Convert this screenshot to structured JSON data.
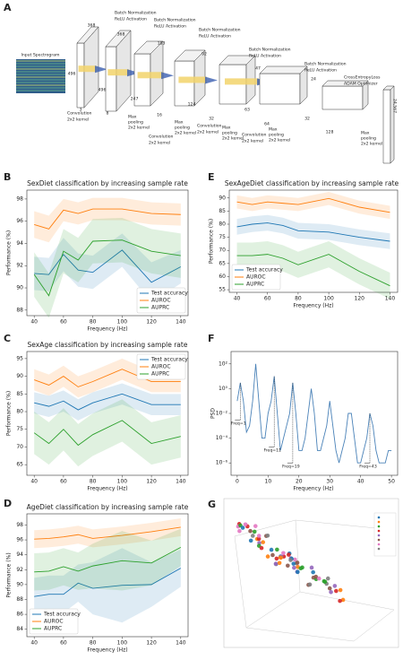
{
  "diagram": {
    "panel": "A",
    "texts": [
      "Input Spectrogram",
      "Batch Normalization",
      "ReLU Activation",
      "Batch Normalization",
      "ReLU Activation",
      "Batch Normalization",
      "ReLU Activation",
      "Batch Normalization",
      "ReLU Activation",
      "Batch Normalization",
      "ReLU Activation",
      "CrossEntropyLoss",
      "ADAM Optimizer",
      "Convolution",
      "2x2 kernel",
      "Max",
      "pooling",
      "2x2 kernel",
      "Convolution",
      "2x2 kernel",
      "Max",
      "pooling",
      "2x2 kernel",
      "Convolution",
      "2x2 kernel",
      "Max",
      "pooling",
      "2x2 kernel",
      "Convolution",
      "2x2 kernel",
      "Max",
      "pooling",
      "2x2 kernel",
      "Max",
      "pooling",
      "2x2 kernel"
    ],
    "dims": [
      "368",
      "496",
      "3",
      "368",
      "496",
      "8",
      "183",
      "247",
      "16",
      "92",
      "124",
      "32",
      "47",
      "63",
      "64",
      "24",
      "32",
      "128",
      "24,567"
    ]
  },
  "chart_data": [
    {
      "type": "line",
      "panel": "B",
      "title": "SexDiet classification by increasing sample rate",
      "x_label": "Frequency (Hz)",
      "y_label": "Performance (%)",
      "x": [
        40,
        50,
        60,
        70,
        80,
        100,
        120,
        140
      ],
      "xlim": [
        35,
        145
      ],
      "xticks": [
        40,
        60,
        80,
        100,
        120,
        140
      ],
      "ylim": [
        87.5,
        98.8
      ],
      "yticks": [
        88,
        90,
        92,
        94,
        96,
        98
      ],
      "legend": "lower right",
      "series": [
        {
          "name": "Test accuracy",
          "color": "#1f77b4",
          "values": [
            91.3,
            91.2,
            93,
            91.6,
            91.4,
            93.4,
            90.5,
            91.9
          ],
          "errors": [
            1.5,
            1.5,
            1.5,
            1.5,
            1.5,
            1.5,
            1.8,
            1.5
          ]
        },
        {
          "name": "AUROC",
          "color": "#ff7f0e",
          "values": [
            95.7,
            95.3,
            97,
            96.7,
            97.1,
            97.1,
            96.7,
            96.6
          ],
          "errors": [
            1.2,
            1.2,
            1,
            1,
            1,
            1,
            1,
            1
          ]
        },
        {
          "name": "AUPRC",
          "color": "#2ca02c",
          "values": [
            91.2,
            89.3,
            93.3,
            92.5,
            94.2,
            94.3,
            93.3,
            92.9
          ],
          "errors": [
            2,
            2,
            2,
            2,
            2,
            2,
            2,
            2
          ]
        }
      ]
    },
    {
      "type": "line",
      "panel": "C",
      "title": "SexAge classification by increasing sample rate",
      "x_label": "Frequency (Hz)",
      "y_label": "Performance (%)",
      "x": [
        40,
        50,
        60,
        70,
        80,
        100,
        120,
        140
      ],
      "xlim": [
        35,
        145
      ],
      "xticks": [
        40,
        60,
        80,
        100,
        120,
        140
      ],
      "ylim": [
        62,
        97
      ],
      "yticks": [
        65,
        70,
        75,
        80,
        85,
        90,
        95
      ],
      "legend": "upper right",
      "series": [
        {
          "name": "Test accuracy",
          "color": "#1f77b4",
          "values": [
            82.5,
            81.5,
            83,
            80.5,
            82.5,
            85,
            82,
            82
          ],
          "errors": [
            3,
            3,
            3,
            3,
            3,
            3,
            3,
            3
          ]
        },
        {
          "name": "AUROC",
          "color": "#ff7f0e",
          "values": [
            89,
            87.5,
            90,
            87,
            88.5,
            92,
            88.5,
            88.5
          ],
          "errors": [
            3,
            3,
            3,
            3,
            3,
            3,
            3,
            3
          ]
        },
        {
          "name": "AUPRC",
          "color": "#2ca02c",
          "values": [
            74,
            71,
            75,
            70.5,
            73.5,
            77.5,
            71,
            73
          ],
          "errors": [
            6,
            6,
            6,
            6,
            6,
            6,
            6,
            6
          ]
        }
      ]
    },
    {
      "type": "line",
      "panel": "D",
      "title": "AgeDiet classification by increasing sample rate",
      "x_label": "Frequency (Hz)",
      "y_label": "Performance (%)",
      "x": [
        40,
        50,
        60,
        70,
        80,
        100,
        120,
        140
      ],
      "xlim": [
        35,
        145
      ],
      "xticks": [
        40,
        60,
        80,
        100,
        120,
        140
      ],
      "ylim": [
        83,
        99.5
      ],
      "yticks": [
        84,
        86,
        88,
        90,
        92,
        94,
        96,
        98
      ],
      "legend": "lower left",
      "series": [
        {
          "name": "Test accuracy",
          "color": "#1f77b4",
          "values": [
            88.4,
            88.7,
            88.7,
            90.2,
            89.5,
            89.9,
            90,
            92.2
          ],
          "errors": [
            2.5,
            2.5,
            2.5,
            2.5,
            3.5,
            5,
            3,
            2.5
          ]
        },
        {
          "name": "AUROC",
          "color": "#ff7f0e",
          "values": [
            96.1,
            96.2,
            96.4,
            96.7,
            96.2,
            96.6,
            97.1,
            97.7
          ],
          "errors": [
            1.2,
            1.2,
            1.2,
            1.2,
            1.2,
            1.2,
            1.2,
            1.2
          ]
        },
        {
          "name": "AUPRC",
          "color": "#2ca02c",
          "values": [
            91.7,
            91.8,
            92.4,
            91.8,
            92.5,
            93.2,
            92.9,
            95
          ],
          "errors": [
            2.5,
            2.5,
            2.5,
            2.5,
            3,
            4,
            3,
            2.5
          ]
        }
      ]
    },
    {
      "type": "line",
      "panel": "E",
      "title": "SexAgeDiet classification by increasing sample rate",
      "x_label": "Frequency (Hz)",
      "y_label": "Performance (%)",
      "x": [
        40,
        50,
        60,
        70,
        80,
        100,
        120,
        140
      ],
      "xlim": [
        35,
        145
      ],
      "xticks": [
        40,
        60,
        80,
        100,
        120,
        140
      ],
      "ylim": [
        54,
        93
      ],
      "yticks": [
        55,
        60,
        65,
        70,
        75,
        80,
        85,
        90
      ],
      "legend": "lower left",
      "series": [
        {
          "name": "Test accuracy",
          "color": "#1f77b4",
          "values": [
            79,
            80,
            80.5,
            79.5,
            77.5,
            77,
            75,
            73.5
          ],
          "errors": [
            3,
            3,
            3,
            3,
            3,
            3,
            3,
            3
          ]
        },
        {
          "name": "AUROC",
          "color": "#ff7f0e",
          "values": [
            88.5,
            87.5,
            88.5,
            88,
            87.5,
            89.8,
            86.5,
            84.5
          ],
          "errors": [
            2.5,
            2.5,
            2.5,
            2.5,
            2.5,
            2.5,
            2.5,
            2.5
          ]
        },
        {
          "name": "AUPRC",
          "color": "#2ca02c",
          "values": [
            68,
            68,
            68.5,
            67,
            64.5,
            68.5,
            62,
            56.5
          ],
          "errors": [
            5,
            5,
            5,
            5,
            5,
            5,
            5,
            5
          ]
        }
      ]
    },
    {
      "type": "logline",
      "panel": "F",
      "x_label": "Frequency (Hz)",
      "y_label": "PSD",
      "x": [
        0,
        1,
        2,
        3,
        4,
        5,
        6,
        7,
        8,
        9,
        10,
        11,
        12,
        13,
        14,
        15,
        16,
        17,
        18,
        19,
        20,
        21,
        22,
        23,
        24,
        25,
        26,
        27,
        28,
        29,
        30,
        31,
        32,
        33,
        34,
        35,
        36,
        37,
        38,
        39,
        40,
        41,
        42,
        43,
        44,
        45,
        46,
        47,
        48,
        49,
        50
      ],
      "xlim": [
        -2,
        52
      ],
      "xticks": [
        0,
        10,
        20,
        30,
        40,
        50
      ],
      "ylim": [
        1e-07,
        1000
      ],
      "log": true,
      "yticks": [
        {
          "value": 1e-06,
          "label": "10⁻⁶"
        },
        {
          "value": 0.0001,
          "label": "10⁻⁴"
        },
        {
          "value": 0.01,
          "label": "10⁻²"
        },
        {
          "value": 1,
          "label": "10⁰"
        },
        {
          "value": 100,
          "label": "10²"
        }
      ],
      "series": [
        {
          "color": "#4a82b8",
          "values": [
            0.1,
            3,
            0.1,
            0.0003,
            0.001,
            0.1,
            100,
            0.1,
            0.0001,
            0.0001,
            0.01,
            0.1,
            10,
            0.01,
            1e-05,
            0.0001,
            0.001,
            0.01,
            3,
            0.01,
            1e-05,
            1e-05,
            0.0001,
            0.01,
            1,
            0.01,
            1e-05,
            1e-05,
            0.0001,
            0.001,
            0.1,
            0.001,
            1e-05,
            1e-06,
            1e-05,
            0.0001,
            0.01,
            0.01,
            0.0001,
            1e-06,
            1e-06,
            1e-05,
            0.0001,
            0.01,
            0.001,
            1e-05,
            1e-06,
            1e-06,
            1e-06,
            1e-05,
            1e-05
          ]
        }
      ],
      "annotations": [
        {
          "x": 1,
          "y": 0.003,
          "label": "Freq=1"
        },
        {
          "x": 12,
          "y": 2e-05,
          "label": "Freq=11"
        },
        {
          "x": 18,
          "y": 1e-06,
          "label": "Freq=19"
        },
        {
          "x": 43,
          "y": 1e-06,
          "label": "Freq=43"
        }
      ]
    }
  ],
  "panel_g": "G"
}
